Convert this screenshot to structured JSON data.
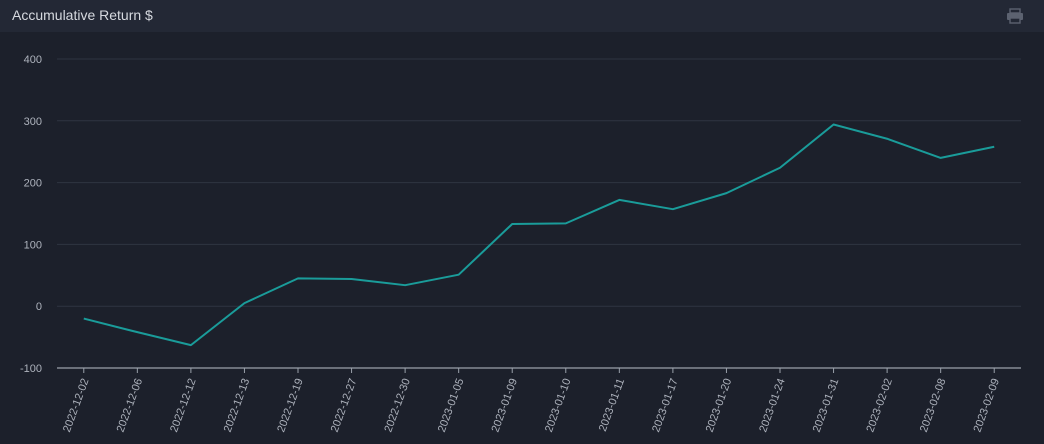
{
  "header": {
    "title": "Accumulative Return $",
    "print_icon": "print-icon"
  },
  "chart_data": {
    "type": "line",
    "title": "Accumulative Return $",
    "xlabel": "",
    "ylabel": "",
    "ylim": [
      -100,
      400
    ],
    "yticks": [
      400,
      300,
      200,
      100,
      0,
      -100
    ],
    "grid": true,
    "categories": [
      "2022-12-02",
      "2022-12-06",
      "2022-12-12",
      "2022-12-13",
      "2022-12-19",
      "2022-12-27",
      "2022-12-30",
      "2023-01-05",
      "2023-01-09",
      "2023-01-10",
      "2023-01-11",
      "2023-01-17",
      "2023-01-20",
      "2023-01-24",
      "2023-01-31",
      "2023-02-02",
      "2023-02-08",
      "2023-02-09"
    ],
    "series": [
      {
        "name": "",
        "color": "#1a9c9a",
        "values": [
          -20,
          -42,
          -63,
          5,
          45,
          44,
          34,
          51,
          133,
          134,
          172,
          157,
          183,
          224,
          294,
          271,
          240,
          258
        ]
      }
    ]
  }
}
